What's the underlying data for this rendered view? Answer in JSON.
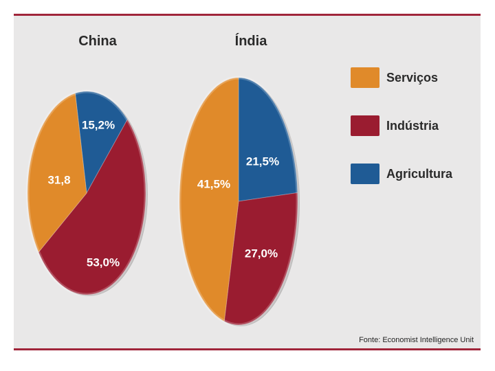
{
  "chart_data": [
    {
      "type": "pie",
      "title": "China",
      "slices": [
        {
          "label": "Serviços",
          "value": 31.8,
          "text": "31,8",
          "color": "#e08a2a"
        },
        {
          "label": "Indústria",
          "value": 53.0,
          "text": "53,0%",
          "color": "#9a1c30"
        },
        {
          "label": "Agricultura",
          "value": 15.2,
          "text": "15,2%",
          "color": "#1f5b95"
        }
      ]
    },
    {
      "type": "pie",
      "title": "Índia",
      "slices": [
        {
          "label": "Serviços",
          "value": 41.5,
          "text": "41,5%",
          "color": "#e08a2a"
        },
        {
          "label": "Indústria",
          "value": 27.0,
          "text": "27,0%",
          "color": "#9a1c30"
        },
        {
          "label": "Agricultura",
          "value": 21.5,
          "text": "21,5%",
          "color": "#1f5b95"
        }
      ]
    }
  ],
  "legend": [
    {
      "label": "Serviços",
      "color": "#e08a2a"
    },
    {
      "label": "Indústria",
      "color": "#9a1c30"
    },
    {
      "label": "Agricultura",
      "color": "#1f5b95"
    }
  ],
  "source": "Fonte: Economist Intelligence Unit"
}
